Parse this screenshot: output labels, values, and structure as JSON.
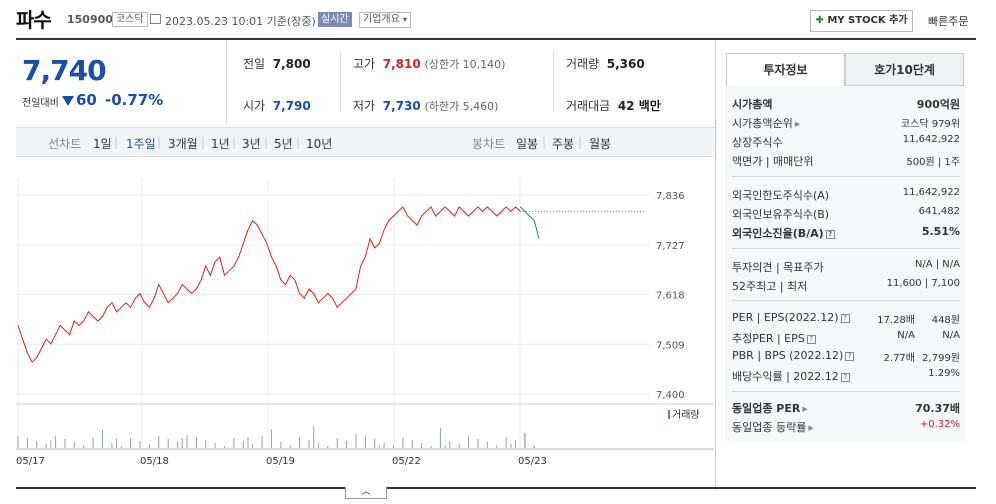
{
  "header": {
    "name": "파수",
    "code": "150900",
    "market": "코스닥",
    "datetime": "2023.05.23 10:01 기준(장중)",
    "live_badge": "실시간",
    "corp_info": "기업개요",
    "mystock": "MY STOCK 추가",
    "quick_order": "빠른주문"
  },
  "price": {
    "current": "7,740",
    "prev_label": "전일대비",
    "change": "60",
    "change_pct": "-0.77%"
  },
  "stats": {
    "prev_close_label": "전일",
    "prev_close": "7,800",
    "high_label": "고가",
    "high": "7,810",
    "upper_limit": "(상한가 10,140)",
    "volume_label": "거래량",
    "volume": "5,360",
    "open_label": "시가",
    "open": "7,790",
    "low_label": "저가",
    "low": "7,730",
    "lower_limit": "(하한가 5,460)",
    "amount_label": "거래대금",
    "amount": "42 백만"
  },
  "periods": {
    "line_label": "선차트",
    "items": [
      "1일",
      "1주일",
      "3개월",
      "1년",
      "3년",
      "5년",
      "10년"
    ],
    "selected": "1주일",
    "candle_label": "봉차트",
    "candle_items": [
      "일봉",
      "주봉",
      "월봉"
    ]
  },
  "chart_data": {
    "type": "line",
    "x_ticks": [
      "05/17",
      "05/18",
      "05/19",
      "05/22",
      "05/23"
    ],
    "y_ticks": [
      7836,
      7727,
      7618,
      7509,
      7400
    ],
    "ylim": [
      7400,
      7836
    ],
    "prev_close_line": 7800,
    "volume_label": "거래량",
    "colors": {
      "up": "#e02020",
      "down": "#2a6fd0",
      "volume": "#9aa0aa"
    },
    "series": [
      {
        "values": [
          7550,
          7520,
          7490,
          7470,
          7480,
          7500,
          7520,
          7510,
          7530,
          7550,
          7540,
          7530,
          7560,
          7550,
          7560,
          7580,
          7570,
          7560,
          7570,
          7590,
          7600,
          7580,
          7590,
          7600,
          7590,
          7610,
          7620,
          7600,
          7590,
          7610,
          7640,
          7620,
          7600,
          7610,
          7620,
          7640,
          7630,
          7620,
          7630,
          7650,
          7680,
          7660,
          7690,
          7700,
          7660,
          7670,
          7680,
          7700,
          7730,
          7760,
          7780,
          7770,
          7750,
          7730,
          7700,
          7680,
          7650,
          7640,
          7660,
          7650,
          7620,
          7610,
          7630,
          7620,
          7600,
          7610,
          7620,
          7610,
          7590,
          7600,
          7610,
          7620,
          7630,
          7680,
          7700,
          7740,
          7720,
          7730,
          7760,
          7780,
          7790,
          7800,
          7810,
          7790,
          7780,
          7770,
          7790,
          7800,
          7810,
          7790,
          7800,
          7810,
          7800,
          7790,
          7810,
          7800,
          7790,
          7800,
          7810,
          7800,
          7810,
          7800,
          7790,
          7800,
          7810,
          7800,
          7810,
          7800
        ]
      },
      {
        "values": [
          7810,
          7800,
          7790,
          7780,
          7740
        ]
      }
    ]
  },
  "panel": {
    "tabs": [
      "투자정보",
      "호가10단계"
    ],
    "rows1": [
      {
        "label": "시가총액",
        "value": "900억원"
      },
      {
        "label": "시가총액순위",
        "value": "코스닥 979위"
      },
      {
        "label": "상장주식수",
        "value": "11,642,922"
      },
      {
        "label": "액면가 | 매매단위",
        "value": "500원 | 1주"
      }
    ],
    "rows2": [
      {
        "label": "외국인한도주식수(A)",
        "value": "11,642,922"
      },
      {
        "label": "외국인보유주식수(B)",
        "value": "641,482"
      },
      {
        "label": "외국인소진율(B/A)",
        "value": "5.51%"
      }
    ],
    "rows3": [
      {
        "label": "투자의견 | 목표주가",
        "value": "N/A | N/A"
      },
      {
        "label": "52주최고 | 최저",
        "value": "11,600 | 7,100"
      }
    ],
    "rows4": [
      {
        "label": "PER | EPS(2022.12)",
        "v1": "17.28배",
        "v2": "448원"
      },
      {
        "label": "추정PER | EPS",
        "v1": "N/A",
        "v2": "N/A"
      },
      {
        "label": "PBR | BPS (2022.12)",
        "v1": "2.77배",
        "v2": "2,799원"
      },
      {
        "label": "배당수익률 | 2022.12",
        "value": "1.29%"
      }
    ],
    "rows5": [
      {
        "label": "동일업종 PER",
        "value": "70.37배"
      },
      {
        "label": "동일업종 등락률",
        "value": "+0.32%"
      }
    ]
  }
}
